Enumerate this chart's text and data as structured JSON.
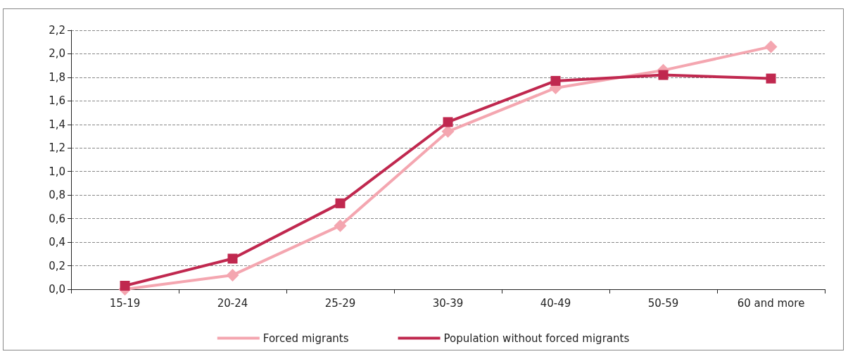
{
  "chart_data": {
    "type": "line",
    "categories": [
      "15-19",
      "20-24",
      "25-29",
      "30-39",
      "40-49",
      "50-59",
      "60 and more"
    ],
    "series": [
      {
        "name": "Forced migrants",
        "color": "#f4a6b0",
        "marker": "diamond",
        "values": [
          0.0,
          0.12,
          0.54,
          1.34,
          1.71,
          1.86,
          2.06
        ]
      },
      {
        "name": "Population without forced migrants",
        "color": "#c0284f",
        "marker": "square",
        "values": [
          0.03,
          0.26,
          0.73,
          1.42,
          1.77,
          1.82,
          1.79
        ]
      }
    ],
    "ylim": [
      0,
      2.2
    ],
    "yticks": [
      {
        "value": 0,
        "label": "0,0"
      },
      {
        "value": 0.2,
        "label": "0,2"
      },
      {
        "value": 0.4,
        "label": "0,4"
      },
      {
        "value": 0.6,
        "label": "0,6"
      },
      {
        "value": 0.8,
        "label": "0,8"
      },
      {
        "value": 1.0,
        "label": "1,0"
      },
      {
        "value": 1.2,
        "label": "1,2"
      },
      {
        "value": 1.4,
        "label": "1,4"
      },
      {
        "value": 1.6,
        "label": "1,6"
      },
      {
        "value": 1.8,
        "label": "1,8"
      },
      {
        "value": 2.0,
        "label": "2,0"
      },
      {
        "value": 2.2,
        "label": "2,2"
      }
    ],
    "grid": "y",
    "legend": "bottom",
    "line_style": "solid"
  }
}
